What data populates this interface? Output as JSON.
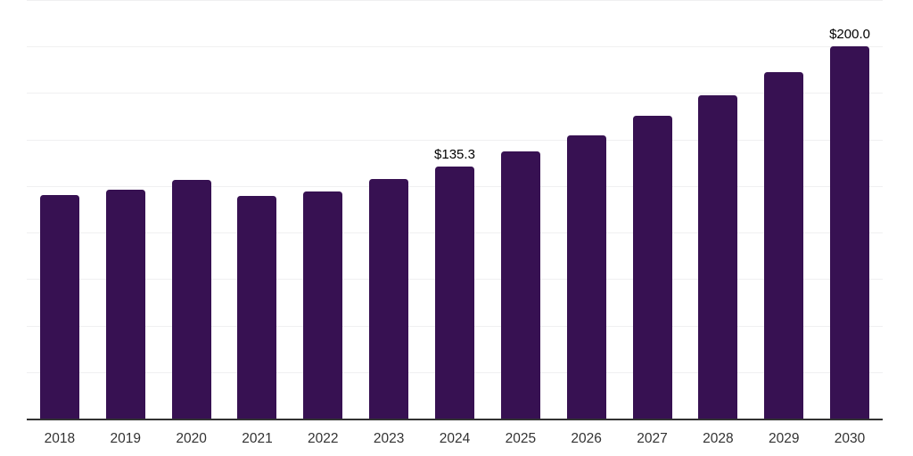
{
  "chart_data": {
    "type": "bar",
    "title": "",
    "xlabel": "",
    "ylabel": "",
    "categories": [
      "2018",
      "2019",
      "2020",
      "2021",
      "2022",
      "2023",
      "2024",
      "2025",
      "2026",
      "2027",
      "2028",
      "2029",
      "2030"
    ],
    "values": [
      120.4,
      123.2,
      128.5,
      119.6,
      122.2,
      128.6,
      135.3,
      143.4,
      152.4,
      162.9,
      174.0,
      186.3,
      200.0
    ],
    "data_labels": {
      "2024": "$135.3",
      "2030": "$200.0"
    },
    "ylim": [
      0,
      225
    ],
    "grid_step": 25,
    "grid": true,
    "legend": false,
    "colors": {
      "bar": "#371152",
      "axis_line": "#333333",
      "gridline": "#f0f0f1",
      "data_label": "#000000",
      "tick_label": "#333333"
    }
  }
}
